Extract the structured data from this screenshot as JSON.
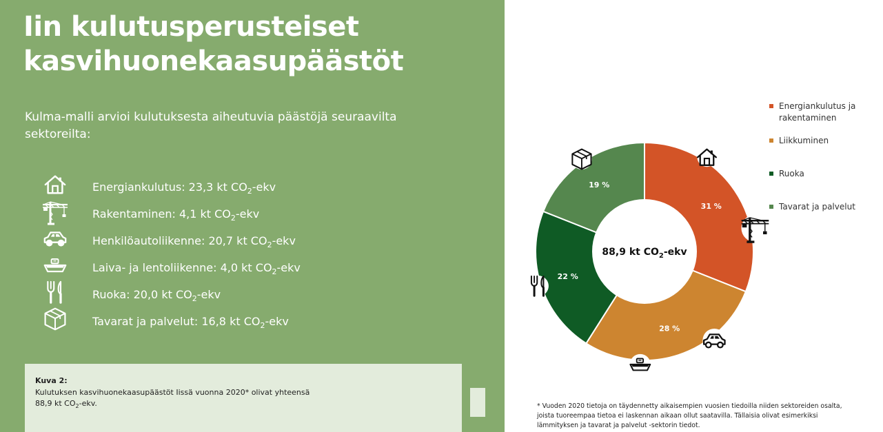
{
  "title": {
    "line1": "Iin kulutusperusteiset",
    "line2": "kasvihuonekaasupäästöt"
  },
  "intro": "Kulma-malli arvioi kulutuksesta aiheutuvia päästöjä seuraavilta sektoreilta:",
  "unit": {
    "pre": "kt CO",
    "sub": "2",
    "post": "-ekv"
  },
  "sectors": [
    {
      "icon": "house-icon",
      "label": "Energiankulutus: 23,3"
    },
    {
      "icon": "crane-icon",
      "label": "Rakentaminen: 4,1"
    },
    {
      "icon": "car-icon",
      "label": "Henkilöautoliikenne: 20,7"
    },
    {
      "icon": "ship-icon",
      "label": "Laiva- ja lentoliikenne: 4,0"
    },
    {
      "icon": "fork-knife-icon",
      "label": "Ruoka: 20,0"
    },
    {
      "icon": "box-icon",
      "label": "Tavarat ja palvelut: 16,8"
    }
  ],
  "caption": {
    "heading": "Kuva 2:",
    "line1": "Kulutuksen kasvihuonekaasupäästöt Iissä vuonna 2020* olivat yhteensä",
    "line2_pre": "88,9 kt CO",
    "line2_sub": "2",
    "line2_post": "-ekv."
  },
  "footnote": "* Vuoden 2020 tietoja on täydennetty aikaisempien vuosien tiedoilla niiden sektoreiden osalta, joista tuoreempaa tietoa ei laskennan aikaan ollut saatavilla. Tällaisia olivat esimerkiksi lämmityksen ja tavarat ja palvelut -sektorin tiedot.",
  "colors": {
    "panel": "#86ab6e",
    "caption_bg": "#e3ecdc",
    "energy": "#d35427",
    "transport": "#cd8530",
    "food": "#0f5b25",
    "goods": "#55874e"
  },
  "chart_data": {
    "type": "pie",
    "donut": true,
    "center_label": {
      "pre": "88,9 kt CO",
      "sub": "2",
      "post": "-ekv"
    },
    "categories": [
      "Energiankulutus ja rakentaminen",
      "Liikkuminen",
      "Ruoka",
      "Tavarat ja palvelut"
    ],
    "values": [
      31,
      28,
      22,
      19
    ],
    "labels": [
      "31 %",
      "28 %",
      "22 %",
      "19 %"
    ],
    "colors": [
      "#d35427",
      "#cd8530",
      "#0f5b25",
      "#55874e"
    ],
    "legend_position": "right",
    "slice_icons": [
      [
        "house-icon",
        "crane-icon"
      ],
      [
        "car-icon",
        "ship-icon"
      ],
      [
        "fork-knife-icon"
      ],
      [
        "box-icon"
      ]
    ]
  }
}
